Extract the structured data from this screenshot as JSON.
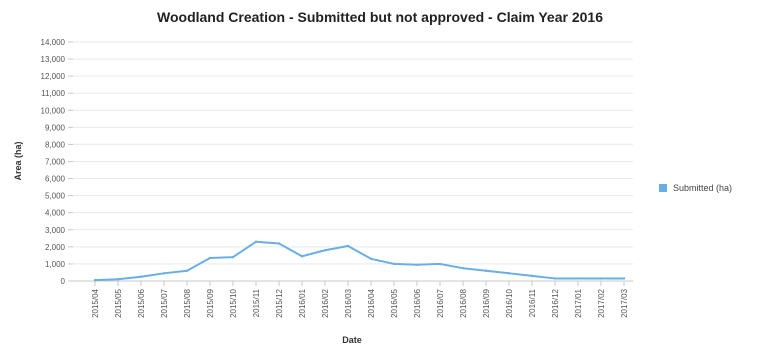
{
  "chart_data": {
    "type": "line",
    "title": "Woodland Creation - Submitted but not approved - Claim Year 2016",
    "xlabel": "Date",
    "ylabel": "Area (ha)",
    "ylim": [
      0,
      14000
    ],
    "yticks": [
      0,
      1000,
      2000,
      3000,
      4000,
      5000,
      6000,
      7000,
      8000,
      9000,
      10000,
      11000,
      12000,
      13000,
      14000
    ],
    "ytick_labels": [
      "0",
      "1,000",
      "2,000",
      "3,000",
      "4,000",
      "5,000",
      "6,000",
      "7,000",
      "8,000",
      "9,000",
      "10,000",
      "11,000",
      "12,000",
      "13,000",
      "14,000"
    ],
    "categories": [
      "2015/04",
      "2015/05",
      "2015/06",
      "2015/07",
      "2015/08",
      "2015/09",
      "2015/10",
      "2015/11",
      "2015/12",
      "2016/01",
      "2016/02",
      "2016/03",
      "2016/04",
      "2016/05",
      "2016/06",
      "2016/07",
      "2016/08",
      "2016/09",
      "2016/10",
      "2016/11",
      "2016/12",
      "2017/01",
      "2017/02",
      "2017/03"
    ],
    "series": [
      {
        "name": "Submitted (ha)",
        "color": "#6aaee6",
        "values": [
          50,
          100,
          250,
          450,
          600,
          1350,
          1400,
          2300,
          2200,
          1450,
          1800,
          2050,
          1300,
          1000,
          950,
          1000,
          750,
          600,
          450,
          300,
          150,
          150,
          150,
          150
        ]
      }
    ],
    "grid": true,
    "legend_position": "right"
  }
}
